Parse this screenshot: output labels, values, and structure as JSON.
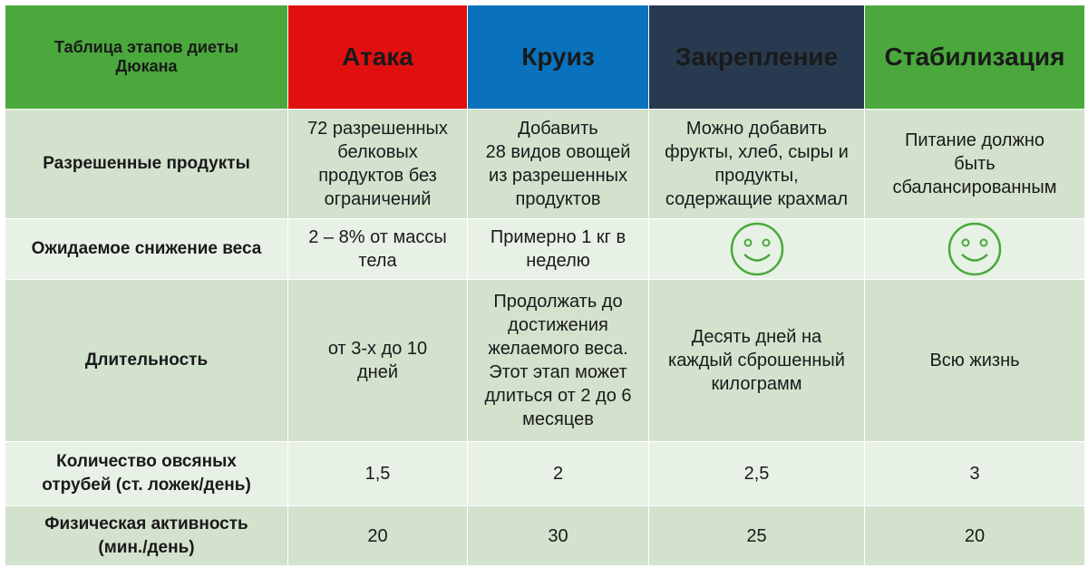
{
  "table": {
    "corner_title": "Таблица этапов диеты\nДюкана",
    "phases": [
      "Атака",
      "Круиз",
      "Закрепление",
      "Стабилизация"
    ],
    "phase_colors": [
      "#e01010",
      "#0a72bd",
      "#283a50",
      "#4aa83c"
    ],
    "rows": [
      {
        "label": "Разрешенные продукты",
        "cells": [
          "72 разрешенных\nбелковых\nпродуктов без\nограничений",
          "Добавить\n28 видов овощей\nиз разрешенных\nпродуктов",
          "Можно добавить\nфрукты, хлеб, сыры и\nпродукты,\nсодержащие крахмал",
          "Питание должно\nбыть\nсбалансированным"
        ]
      },
      {
        "label": "Ожидаемое снижение веса",
        "cells": [
          "2 – 8% от массы\nтела",
          "Примерно 1 кг в\nнеделю",
          "smiley-icon",
          "smiley-icon"
        ]
      },
      {
        "label": "Длительность",
        "cells": [
          "от 3-х до 10\nдней",
          "Продолжать до\nдостижения\nжелаемого веса.\nЭтот этап может\nдлиться от 2 до 6\nмесяцев",
          "Десять дней на\nкаждый сброшенный\nкилограмм",
          "Всю жизнь"
        ]
      },
      {
        "label": "Количество овсяных\nотрубей (ст. ложек/день)",
        "cells": [
          "1,5",
          "2",
          "2,5",
          "3"
        ]
      },
      {
        "label": "Физическая активность\n(мин./день)",
        "cells": [
          "20",
          "30",
          "25",
          "20"
        ]
      }
    ],
    "smiley_color": "#4aa83c"
  }
}
